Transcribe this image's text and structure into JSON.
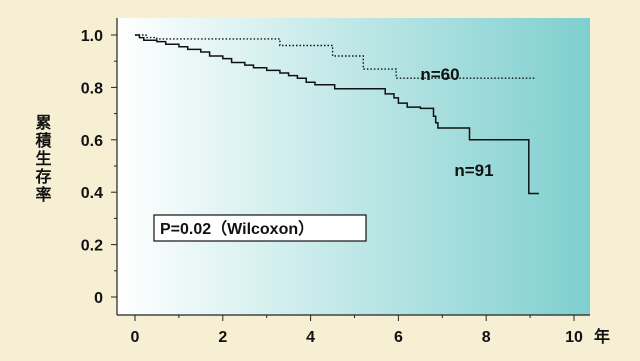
{
  "colors": {
    "background": "#f7efd4",
    "plot_gradient_start": "#ffffff",
    "plot_gradient_end": "#7fcfcf",
    "axis": "#222222",
    "line": "#111111"
  },
  "chart_data": {
    "type": "line",
    "ylabel": "累積生存率",
    "xlabel": "",
    "x_unit": "年",
    "xlim": [
      0,
      10
    ],
    "ylim": [
      0,
      1.0
    ],
    "xticks": [
      0,
      2,
      4,
      6,
      8,
      10
    ],
    "xtick_labels": [
      "0",
      "2",
      "4",
      "6",
      "8",
      "10"
    ],
    "yticks": [
      0,
      0.2,
      0.4,
      0.6,
      0.8,
      1.0
    ],
    "ytick_labels": [
      "0",
      "0.2",
      "0.4",
      "0.6",
      "0.8",
      "1.0"
    ],
    "grid": false,
    "annotation": "P=0.02（Wilcoxon）",
    "series": [
      {
        "name": "n=60",
        "style": "dotted",
        "steps": [
          [
            0.0,
            1.0
          ],
          [
            0.25,
            0.99
          ],
          [
            0.5,
            0.985
          ],
          [
            3.2,
            0.985
          ],
          [
            3.3,
            0.96
          ],
          [
            4.45,
            0.96
          ],
          [
            4.5,
            0.92
          ],
          [
            5.15,
            0.92
          ],
          [
            5.2,
            0.87
          ],
          [
            5.9,
            0.87
          ],
          [
            5.95,
            0.835
          ],
          [
            9.1,
            0.835
          ]
        ]
      },
      {
        "name": "n=91",
        "style": "solid",
        "steps": [
          [
            0.0,
            1.0
          ],
          [
            0.1,
            0.99
          ],
          [
            0.2,
            0.98
          ],
          [
            0.5,
            0.975
          ],
          [
            0.7,
            0.965
          ],
          [
            1.0,
            0.955
          ],
          [
            1.2,
            0.945
          ],
          [
            1.5,
            0.935
          ],
          [
            1.7,
            0.92
          ],
          [
            2.0,
            0.91
          ],
          [
            2.2,
            0.895
          ],
          [
            2.5,
            0.885
          ],
          [
            2.7,
            0.875
          ],
          [
            3.0,
            0.865
          ],
          [
            3.3,
            0.855
          ],
          [
            3.5,
            0.845
          ],
          [
            3.7,
            0.835
          ],
          [
            3.9,
            0.82
          ],
          [
            4.1,
            0.81
          ],
          [
            4.5,
            0.81
          ],
          [
            4.55,
            0.795
          ],
          [
            5.65,
            0.795
          ],
          [
            5.7,
            0.775
          ],
          [
            5.9,
            0.76
          ],
          [
            6.0,
            0.74
          ],
          [
            6.2,
            0.725
          ],
          [
            6.5,
            0.72
          ],
          [
            6.8,
            0.69
          ],
          [
            6.85,
            0.665
          ],
          [
            6.9,
            0.645
          ],
          [
            7.6,
            0.645
          ],
          [
            7.62,
            0.6
          ],
          [
            8.95,
            0.6
          ],
          [
            8.97,
            0.395
          ],
          [
            9.2,
            0.395
          ]
        ]
      }
    ]
  }
}
